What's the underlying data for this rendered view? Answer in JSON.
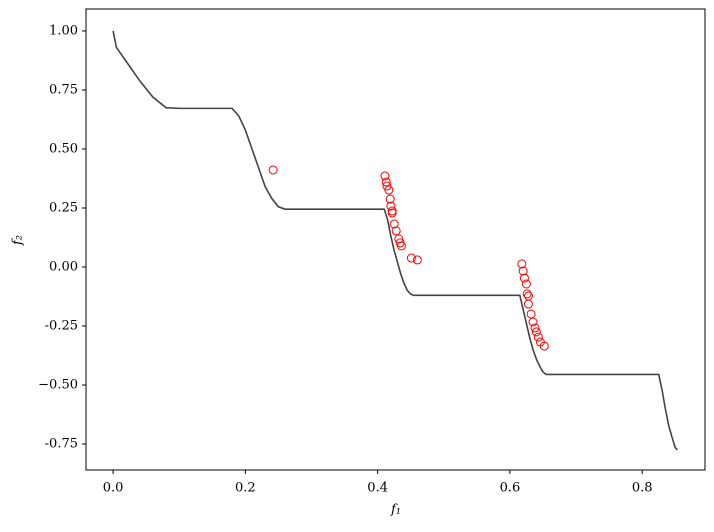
{
  "chart_data": {
    "type": "line",
    "xlabel": "f₁",
    "ylabel": "f₂",
    "xlim": [
      -0.041,
      0.895
    ],
    "ylim": [
      -0.86,
      1.093
    ],
    "xticks": [
      {
        "value": 0,
        "label": "0.0"
      },
      0.2,
      0.4,
      0.6,
      0.8
    ],
    "yticks": [
      {
        "value": 1,
        "label": "1.00"
      },
      0.75,
      {
        "value": 0.5,
        "label": "0.50"
      },
      0.25,
      {
        "value": 0,
        "label": "0.00"
      },
      -0.25,
      {
        "value": -0.5,
        "label": "−0.50"
      },
      -0.75
    ],
    "series": [
      {
        "type": "line",
        "color": "#444444",
        "x": [
          0,
          0.005,
          0.02,
          0.04,
          0.06,
          0.08,
          0.1,
          0.18,
          0.19,
          0.2,
          0.21,
          0.22,
          0.23,
          0.24,
          0.25,
          0.26,
          0.3,
          0.41,
          0.415,
          0.42,
          0.425,
          0.43,
          0.435,
          0.44,
          0.445,
          0.45,
          0.455,
          0.615,
          0.62,
          0.625,
          0.63,
          0.635,
          0.64,
          0.645,
          0.65,
          0.655,
          0.825,
          0.83,
          0.835,
          0.84,
          0.845,
          0.85,
          0.853
        ],
        "values": [
          1.0,
          0.93,
          0.87,
          0.79,
          0.72,
          0.675,
          0.672,
          0.672,
          0.64,
          0.58,
          0.5,
          0.42,
          0.34,
          0.29,
          0.255,
          0.245,
          0.245,
          0.245,
          0.2,
          0.13,
          0.07,
          0.02,
          -0.03,
          -0.07,
          -0.1,
          -0.115,
          -0.12,
          -0.12,
          -0.18,
          -0.24,
          -0.3,
          -0.35,
          -0.39,
          -0.42,
          -0.445,
          -0.455,
          -0.455,
          -0.52,
          -0.6,
          -0.67,
          -0.72,
          -0.765,
          -0.775
        ]
      },
      {
        "type": "scatter",
        "color": "#ff0000",
        "x": [
          0.242,
          0.411,
          0.413,
          0.414,
          0.417,
          0.419,
          0.42,
          0.422,
          0.422,
          0.425,
          0.428,
          0.432,
          0.434,
          0.436,
          0.451,
          0.46,
          0.618,
          0.62,
          0.622,
          0.625,
          0.626,
          0.628,
          0.628,
          0.632,
          0.635,
          0.638,
          0.64,
          0.643,
          0.646,
          0.652
        ],
        "values": [
          0.411,
          0.386,
          0.36,
          0.343,
          0.326,
          0.288,
          0.258,
          0.237,
          0.229,
          0.182,
          0.153,
          0.119,
          0.102,
          0.089,
          0.038,
          0.03,
          0.013,
          -0.017,
          -0.047,
          -0.072,
          -0.114,
          -0.123,
          -0.157,
          -0.199,
          -0.233,
          -0.258,
          -0.275,
          -0.297,
          -0.318,
          -0.335
        ]
      }
    ]
  }
}
